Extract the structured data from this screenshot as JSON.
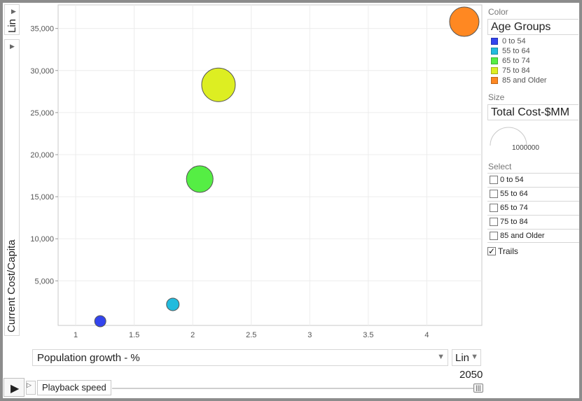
{
  "chart_data": {
    "type": "scatter",
    "subtype": "bubble",
    "x_axis": {
      "label": "Population growth - %",
      "scale": "Lin",
      "range": [
        0.85,
        4.47
      ],
      "ticks": [
        "1",
        "1.5",
        "2",
        "2.5",
        "3",
        "3.5",
        "4"
      ],
      "tick_values": [
        1,
        1.5,
        2,
        2.5,
        3,
        3.5,
        4
      ]
    },
    "y_axis": {
      "label": "Current Cost/Capita",
      "scale": "Lin",
      "range": [
        -300,
        37800
      ],
      "ticks": [
        "5,000",
        "10,000",
        "15,000",
        "20,000",
        "25,000",
        "30,000",
        "35,000"
      ],
      "tick_values": [
        5000,
        10000,
        15000,
        20000,
        25000,
        30000,
        35000
      ]
    },
    "grid": true,
    "series": [
      {
        "name": "0 to 54",
        "x": 1.21,
        "y": 200,
        "size": 8,
        "color": "#3344ee"
      },
      {
        "name": "55 to 64",
        "x": 1.83,
        "y": 2200,
        "size": 9,
        "color": "#22bbdd"
      },
      {
        "name": "65 to 74",
        "x": 2.06,
        "y": 17100,
        "size": 19,
        "color": "#55ee44"
      },
      {
        "name": "75 to 84",
        "x": 2.22,
        "y": 28300,
        "size": 24,
        "color": "#ddee22"
      },
      {
        "name": "85 and Older",
        "x": 4.32,
        "y": 35800,
        "size": 21,
        "color": "#ff8822"
      }
    ],
    "year": "2050"
  },
  "controls": {
    "y_scale": "Lin",
    "y_metric": "Current Cost/Capita",
    "x_metric": "Population growth - %",
    "x_scale": "Lin",
    "year": "2050",
    "playback_tooltip": "Playback speed"
  },
  "panel": {
    "color_title": "Color",
    "color_value": "Age Groups",
    "legend": [
      {
        "label": "0 to 54",
        "color": "#3344ee"
      },
      {
        "label": "55 to 64",
        "color": "#22bbdd"
      },
      {
        "label": "65 to 74",
        "color": "#55ee44"
      },
      {
        "label": "75 to 84",
        "color": "#ddee22"
      },
      {
        "label": "85 and Older",
        "color": "#ff8822"
      }
    ],
    "size_title": "Size",
    "size_value": "Total Cost-$MM",
    "size_scale_label": "1000000",
    "select_title": "Select",
    "select_items": [
      "0 to 54",
      "55 to 64",
      "65 to 74",
      "75 to 84",
      "85 and Older"
    ],
    "trails_label": "Trails",
    "trails_checked": true
  }
}
